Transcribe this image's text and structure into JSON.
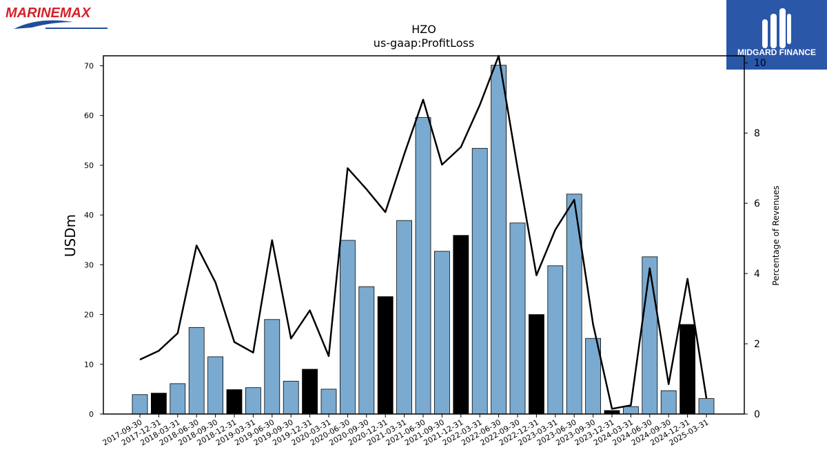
{
  "brand_left": {
    "text": "MARINEMAX",
    "color": "#d6202a",
    "accent": "#1f4e9a"
  },
  "brand_right": {
    "text": "MIDGARD FINANCE",
    "bg": "#2a57a8"
  },
  "chart_data": {
    "type": "bar",
    "title": "HZO",
    "subtitle": "us-gaap:ProfitLoss",
    "ylabel": "USDm",
    "y2label": "Percentage of Revenues",
    "ylim": [
      0,
      72
    ],
    "y2lim": [
      0,
      10.2
    ],
    "yticks": [
      0,
      10,
      20,
      30,
      40,
      50,
      60,
      70
    ],
    "y2ticks": [
      0,
      2,
      4,
      6,
      8,
      10
    ],
    "grid": false,
    "colors": {
      "quarter": "#7aaad0",
      "year_end": "#000000",
      "line": "#000000"
    },
    "categories": [
      "2017-09-30",
      "2017-12-31",
      "2018-03-31",
      "2018-06-30",
      "2018-09-30",
      "2018-12-31",
      "2019-03-31",
      "2019-06-30",
      "2019-09-30",
      "2019-12-31",
      "2020-03-31",
      "2020-06-30",
      "2020-09-30",
      "2020-12-31",
      "2021-03-31",
      "2021-06-30",
      "2021-09-30",
      "2021-12-31",
      "2022-03-31",
      "2022-06-30",
      "2022-09-30",
      "2022-12-31",
      "2023-03-31",
      "2023-06-30",
      "2023-09-30",
      "2023-12-31",
      "2024-03-31",
      "2024-06-30",
      "2024-09-30",
      "2024-12-31",
      "2025-03-31"
    ],
    "series": [
      {
        "type": "bar",
        "axis": "left",
        "values": [
          3.9,
          4.2,
          6.1,
          17.4,
          11.5,
          4.9,
          5.3,
          19.0,
          6.6,
          9.0,
          5.0,
          34.9,
          25.6,
          23.6,
          38.9,
          59.6,
          32.7,
          35.9,
          53.4,
          70.1,
          38.4,
          20.0,
          29.8,
          44.2,
          15.2,
          0.7,
          1.5,
          31.6,
          4.7,
          18.0,
          3.1
        ],
        "highlight": [
          false,
          true,
          false,
          false,
          false,
          true,
          false,
          false,
          false,
          true,
          false,
          false,
          false,
          true,
          false,
          false,
          false,
          true,
          false,
          false,
          false,
          true,
          false,
          false,
          false,
          true,
          false,
          false,
          false,
          true,
          false
        ]
      },
      {
        "type": "line",
        "axis": "right",
        "values": [
          1.55,
          1.8,
          2.3,
          4.8,
          3.75,
          2.05,
          1.75,
          4.95,
          2.15,
          2.95,
          1.65,
          7.0,
          6.4,
          5.75,
          7.4,
          8.95,
          7.1,
          7.6,
          8.8,
          10.2,
          7.0,
          3.95,
          5.25,
          6.1,
          2.55,
          0.15,
          0.25,
          4.15,
          0.85,
          3.85,
          0.45
        ]
      }
    ]
  }
}
